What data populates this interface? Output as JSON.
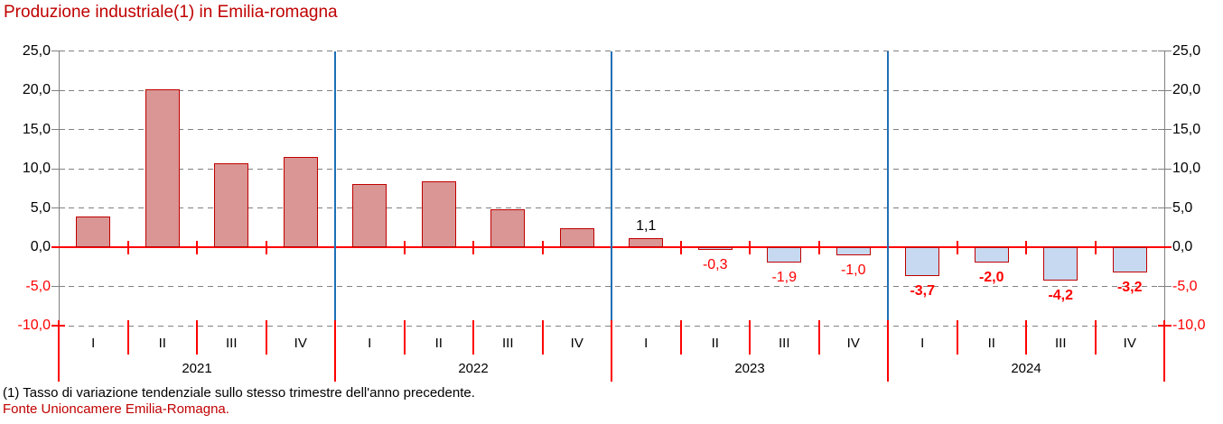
{
  "title": "Produzione industriale(1) in Emilia-romagna",
  "footnotes": {
    "note": "(1) Tasso di variazione tendenziale sullo stesso trimestre dell'anno precedente.",
    "source": "Fonte Unioncamere Emilia-Romagna."
  },
  "colors": {
    "title_red": "#C00000",
    "positive_fill": "#D99694",
    "negative_fill": "#C6D9F1",
    "bar_border": "#C00000",
    "axis_red": "#FF0000",
    "grid_gray": "#808080",
    "axis_gray": "#808080",
    "year_separator_blue": "#1F6FB5",
    "label_black": "#000000",
    "label_red": "#FF0000"
  },
  "chart_data": {
    "type": "bar",
    "title": "Produzione industriale(1) in Emilia-romagna",
    "xlabel": "",
    "ylabel": "",
    "ylim": [
      -10,
      25
    ],
    "ytick_step": 5,
    "grid": "horizontal-dashed",
    "legend": "none",
    "yticks": [
      {
        "value": 25,
        "label": "25,0",
        "negative": false
      },
      {
        "value": 20,
        "label": "20,0",
        "negative": false
      },
      {
        "value": 15,
        "label": "15,0",
        "negative": false
      },
      {
        "value": 10,
        "label": "10,0",
        "negative": false
      },
      {
        "value": 5,
        "label": "5,0",
        "negative": false
      },
      {
        "value": 0,
        "label": "0,0",
        "negative": false
      },
      {
        "value": -5,
        "label": "-5,0",
        "negative": true
      },
      {
        "value": -10,
        "label": "-10,0",
        "negative": true
      }
    ],
    "groups": [
      "2021",
      "2022",
      "2023",
      "2024"
    ],
    "quarters": [
      "I",
      "II",
      "III",
      "IV"
    ],
    "series": [
      {
        "year": "2021",
        "quarter": "I",
        "value": 3.9,
        "label": null,
        "label_bold": false
      },
      {
        "year": "2021",
        "quarter": "II",
        "value": 20.1,
        "label": null,
        "label_bold": false
      },
      {
        "year": "2021",
        "quarter": "III",
        "value": 10.7,
        "label": null,
        "label_bold": false
      },
      {
        "year": "2021",
        "quarter": "IV",
        "value": 11.5,
        "label": null,
        "label_bold": false
      },
      {
        "year": "2022",
        "quarter": "I",
        "value": 8.1,
        "label": null,
        "label_bold": false
      },
      {
        "year": "2022",
        "quarter": "II",
        "value": 8.4,
        "label": null,
        "label_bold": false
      },
      {
        "year": "2022",
        "quarter": "III",
        "value": 4.8,
        "label": null,
        "label_bold": false
      },
      {
        "year": "2022",
        "quarter": "IV",
        "value": 2.4,
        "label": null,
        "label_bold": false
      },
      {
        "year": "2023",
        "quarter": "I",
        "value": 1.1,
        "label": "1,1",
        "label_bold": false
      },
      {
        "year": "2023",
        "quarter": "II",
        "value": -0.3,
        "label": "-0,3",
        "label_bold": false
      },
      {
        "year": "2023",
        "quarter": "III",
        "value": -1.9,
        "label": "-1,9",
        "label_bold": false
      },
      {
        "year": "2023",
        "quarter": "IV",
        "value": -1.0,
        "label": "-1,0",
        "label_bold": false
      },
      {
        "year": "2024",
        "quarter": "I",
        "value": -3.7,
        "label": "-3,7",
        "label_bold": true
      },
      {
        "year": "2024",
        "quarter": "II",
        "value": -2.0,
        "label": "-2,0",
        "label_bold": true
      },
      {
        "year": "2024",
        "quarter": "III",
        "value": -4.2,
        "label": "-4,2",
        "label_bold": true
      },
      {
        "year": "2024",
        "quarter": "IV",
        "value": -3.2,
        "label": "-3,2",
        "label_bold": true
      }
    ]
  }
}
